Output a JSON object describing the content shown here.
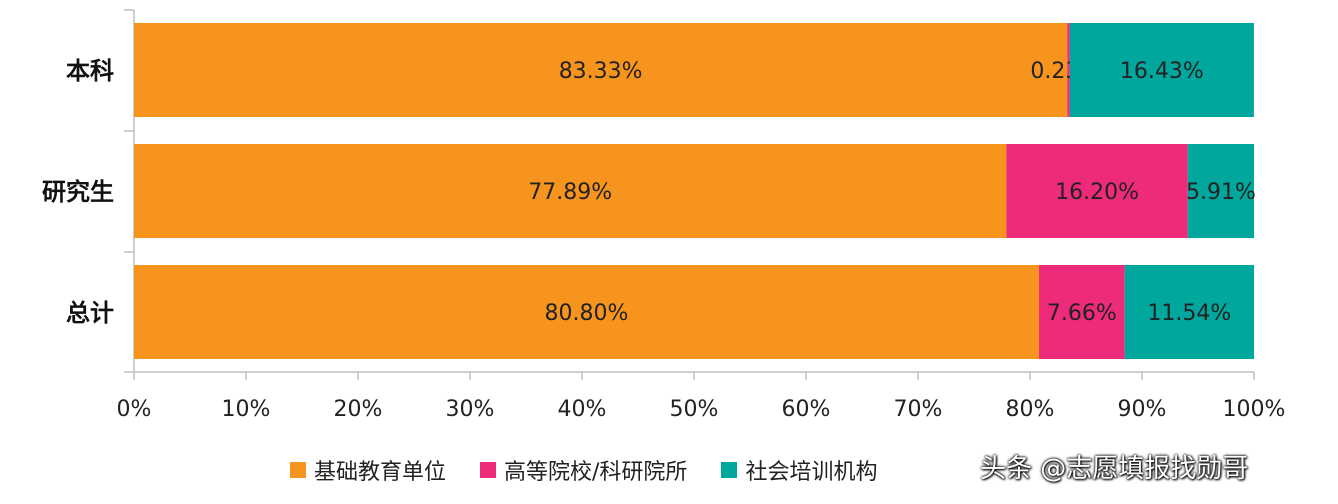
{
  "chart_data": {
    "type": "bar",
    "orientation": "horizontal",
    "stacked": true,
    "categories": [
      "本科",
      "研究生",
      "总计"
    ],
    "series": [
      {
        "name": "基础教育单位",
        "values": [
          83.33,
          77.89,
          80.8
        ],
        "labels": [
          "83.33%",
          "77.89%",
          "80.80%"
        ],
        "color": "#F7941D"
      },
      {
        "name": "高等院校/科研院所",
        "values": [
          0.23,
          16.2,
          7.66
        ],
        "labels": [
          "0.23%",
          "16.20%",
          "7.66%"
        ],
        "color": "#EE2A7B"
      },
      {
        "name": "社会培训机构",
        "values": [
          16.43,
          5.91,
          11.54
        ],
        "labels": [
          "16.43%",
          "5.91%",
          "11.54%"
        ],
        "color": "#00A79D"
      }
    ],
    "xlim": [
      0,
      100
    ],
    "xticks": [
      "0%",
      "10%",
      "20%",
      "30%",
      "40%",
      "50%",
      "60%",
      "70%",
      "80%",
      "90%",
      "100%"
    ],
    "grid": false,
    "legend_position": "bottom"
  },
  "legend": {
    "items": [
      {
        "label": "基础教育单位",
        "color": "#F7941D"
      },
      {
        "label": "高等院校/科研院所",
        "color": "#EE2A7B"
      },
      {
        "label": "社会培训机构",
        "color": "#00A79D"
      }
    ]
  },
  "watermark": "头条 @志愿填报找勋哥"
}
